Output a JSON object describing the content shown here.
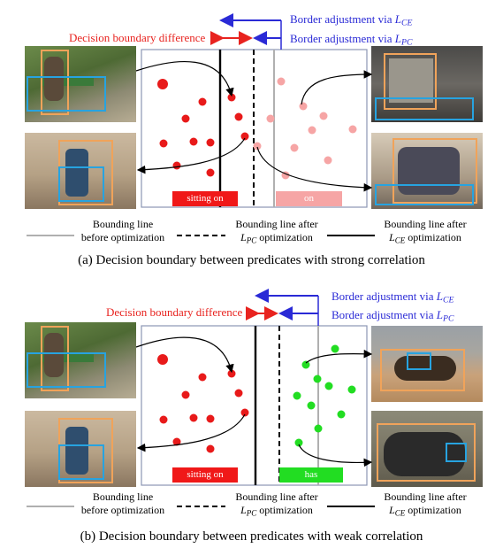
{
  "panels": [
    {
      "id": "a",
      "diff_label": "Decision boundary difference",
      "ce_label": "Border adjustment via",
      "pc_label": "Border adjustment via",
      "ce_sub": "CE",
      "pc_sub": "PC",
      "loss_symbol": "L",
      "left_predicate": "sitting on",
      "right_predicate": "on",
      "right_color": "#f6a5a5",
      "right_dot_color": "#f6a5a5",
      "caption": "(a)  Decision boundary between predicates with strong correlation"
    },
    {
      "id": "b",
      "diff_label": "Decision boundary difference",
      "ce_label": "Border adjustment via",
      "pc_label": "Border adjustment via",
      "ce_sub": "CE",
      "pc_sub": "PC",
      "loss_symbol": "L",
      "left_predicate": "sitting on",
      "right_predicate": "has",
      "right_color": "#22dd22",
      "right_dot_color": "#22dd22",
      "caption": "(b)  Decision boundary between predicates with weak correlation"
    }
  ],
  "legend": {
    "before_line1": "Bounding line",
    "before_line2": "before optimization",
    "pc_line1": "Bounding line after",
    "pc_line2_suffix": "optimization",
    "ce_line1": "Bounding line after",
    "ce_line2_suffix": "optimization",
    "loss_symbol": "L",
    "pc_sub": "PC",
    "ce_sub": "CE"
  },
  "colors": {
    "red": "#e8231f",
    "blue": "#2a2ad6",
    "sitting_on_box": "#f01818",
    "bbox_orange": "#f0a35a",
    "bbox_blue": "#27a3e0"
  }
}
